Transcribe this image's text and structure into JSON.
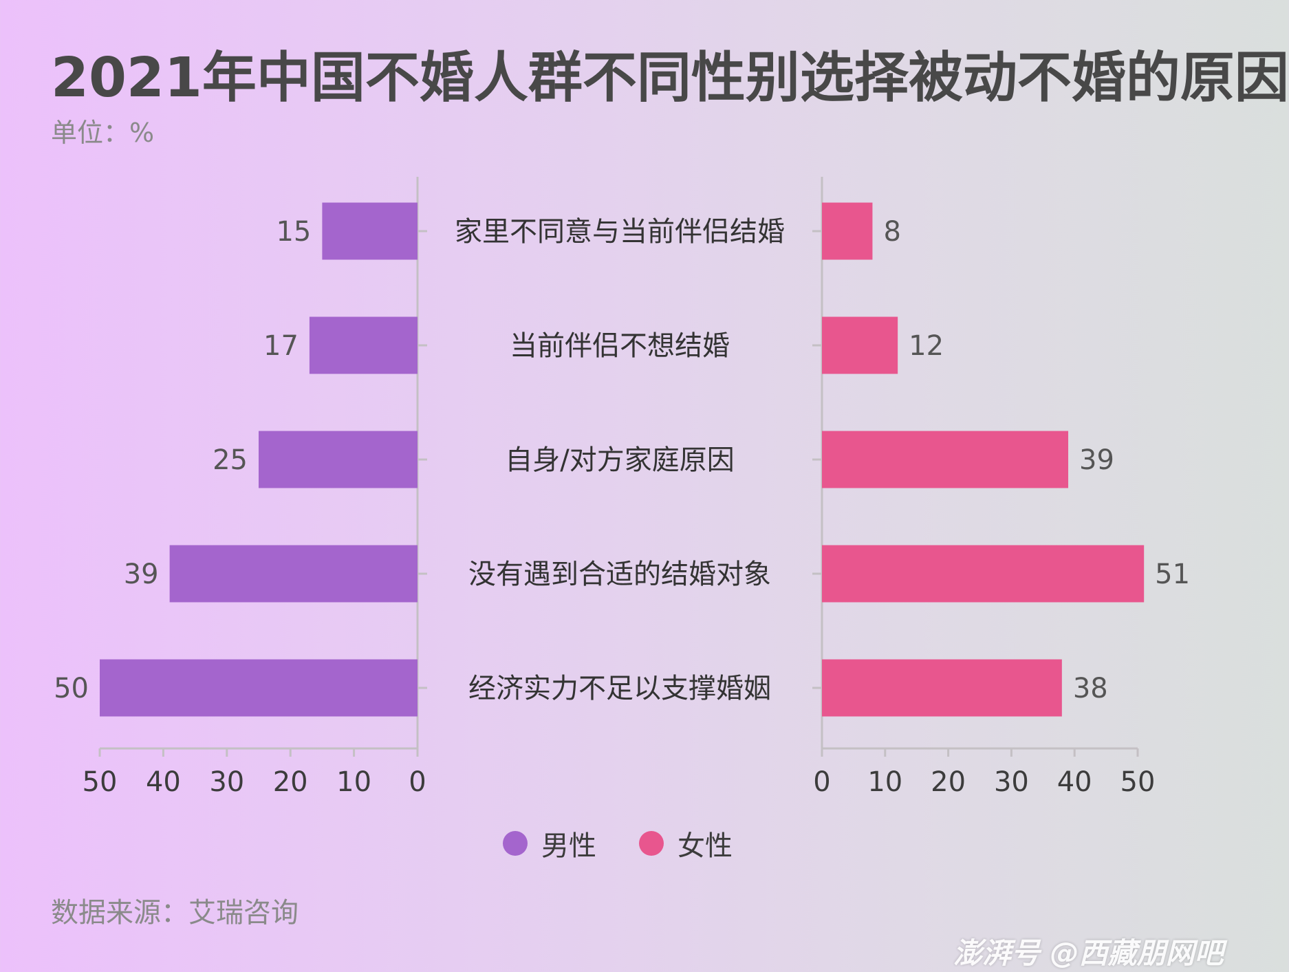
{
  "title": "2021年中国不婚人群不同性别选择被动不婚的原因",
  "unit_label": "单位：%",
  "source_label": "数据来源：艾瑞咨询",
  "watermark": "澎湃号 @西藏朋网吧",
  "colors": {
    "male": "#a465cd",
    "female": "#e8568e",
    "axis": "#c4c0c4"
  },
  "chart_data": {
    "type": "bar",
    "orientation": "horizontal-butterfly",
    "categories": [
      "家里不同意与当前伴侣结婚",
      "当前伴侣不想结婚",
      "自身/对方家庭原因",
      "没有遇到合适的结婚对象",
      "经济实力不足以支撑婚姻"
    ],
    "series": [
      {
        "name": "男性",
        "values": [
          15,
          17,
          25,
          39,
          50
        ],
        "color": "#a465cd"
      },
      {
        "name": "女性",
        "values": [
          8,
          12,
          39,
          51,
          38
        ],
        "color": "#e8568e"
      }
    ],
    "xlim": [
      0,
      50
    ],
    "x_ticks_left": [
      "50",
      "40",
      "30",
      "20",
      "10",
      "0"
    ],
    "x_ticks_right": [
      "0",
      "10",
      "20",
      "30",
      "40",
      "50"
    ],
    "grid": false,
    "legend_position": "bottom-center"
  }
}
